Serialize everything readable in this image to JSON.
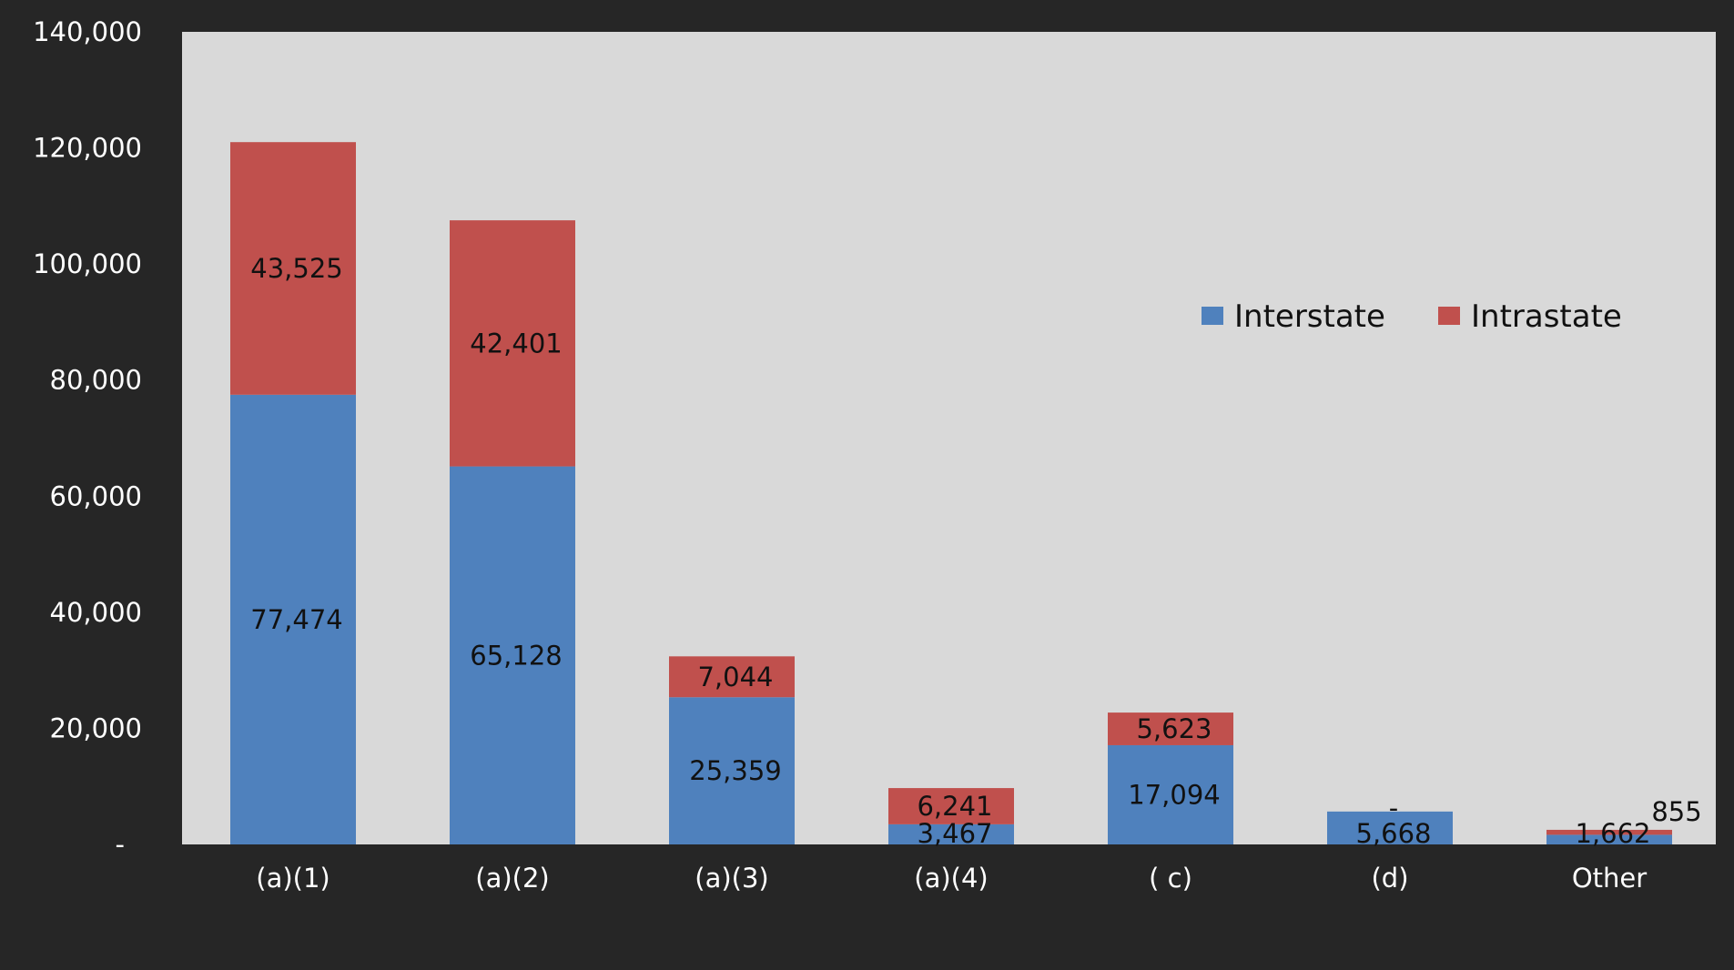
{
  "chart_data": {
    "type": "bar",
    "stacked": true,
    "categories": [
      "(a)(1)",
      "(a)(2)",
      "(a)(3)",
      "(a)(4)",
      "( c)",
      "(d)",
      "Other"
    ],
    "series": [
      {
        "name": "Interstate",
        "color": "#4f81bd",
        "values": [
          77474,
          65128,
          25359,
          3467,
          17094,
          5668,
          1662
        ],
        "labels": [
          "77,474",
          "65,128",
          "25,359",
          "3,467",
          "17,094",
          "5,668",
          "1,662"
        ]
      },
      {
        "name": "Intrastate",
        "color": "#c0504d",
        "values": [
          43525,
          42401,
          7044,
          6241,
          5623,
          0,
          855
        ],
        "labels": [
          "43,525",
          "42,401",
          "7,044",
          "6,241",
          "5,623",
          "-",
          "855"
        ]
      }
    ],
    "ylim": [
      0,
      140000
    ],
    "y_ticks": [
      0,
      20000,
      40000,
      60000,
      80000,
      100000,
      120000,
      140000
    ],
    "y_tick_labels": [
      "-",
      "20,000",
      "40,000",
      "60,000",
      "80,000",
      "100,000",
      "120,000",
      "140,000"
    ],
    "title": "",
    "xlabel": "",
    "ylabel": "",
    "grid": false,
    "legend": "right",
    "plot_background": "#d9d9d9",
    "page_background": "#262626"
  }
}
